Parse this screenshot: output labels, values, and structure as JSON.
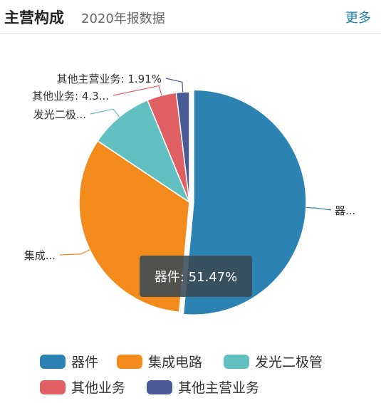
{
  "header": {
    "title": "主营构成",
    "subtitle": "2020年报数据",
    "more_label": "更多"
  },
  "chart_data": {
    "type": "pie",
    "slices": [
      {
        "name": "器件",
        "value": 51.47,
        "color": "#2c83b3",
        "label": "器..."
      },
      {
        "name": "集成电路",
        "value": 32.9,
        "color": "#f28a1c",
        "label": "集成..."
      },
      {
        "name": "发光二极管",
        "value": 9.42,
        "color": "#62c0c1",
        "label": "发光二极..."
      },
      {
        "name": "其他业务",
        "value": 4.3,
        "color": "#e05f63",
        "label": "其他业务: 4.3..."
      },
      {
        "name": "其他主营业务",
        "value": 1.91,
        "color": "#4a5a95",
        "label": "其他主营业务: 1.91%"
      }
    ],
    "tooltip": "器件: 51.47%",
    "legend_position": "bottom"
  },
  "legend": [
    "器件",
    "集成电路",
    "发光二极管",
    "其他业务",
    "其他主营业务"
  ]
}
